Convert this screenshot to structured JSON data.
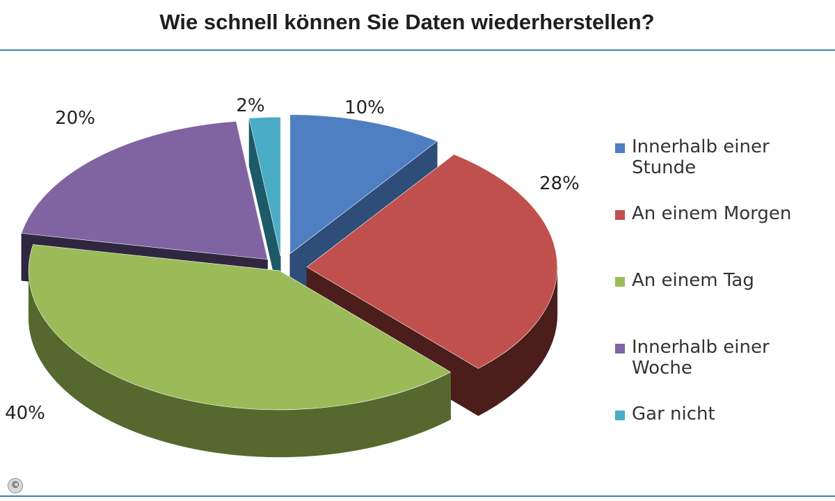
{
  "chart_data": {
    "type": "pie",
    "title": "Wie schnell können Sie Daten wiederherstellen?",
    "categories": [
      "Innerhalb einer Stunde",
      "An einem Morgen",
      "An einem Tag",
      "Innerhalb einer Woche",
      "Gar nicht"
    ],
    "values": [
      10,
      28,
      40,
      20,
      2
    ],
    "value_labels": [
      "10%",
      "28%",
      "40%",
      "20%",
      "2%"
    ],
    "colors": [
      "#4f7fc3",
      "#c0504d",
      "#9bbb59",
      "#8064a2",
      "#4bacc6"
    ],
    "side_colors": [
      "#2e4d78",
      "#4b1e1b",
      "#55692f",
      "#2f2740",
      "#1d5a67"
    ],
    "legend_position": "right",
    "style": "3d-exploded"
  },
  "footer": {
    "copyright_symbol": "©"
  }
}
